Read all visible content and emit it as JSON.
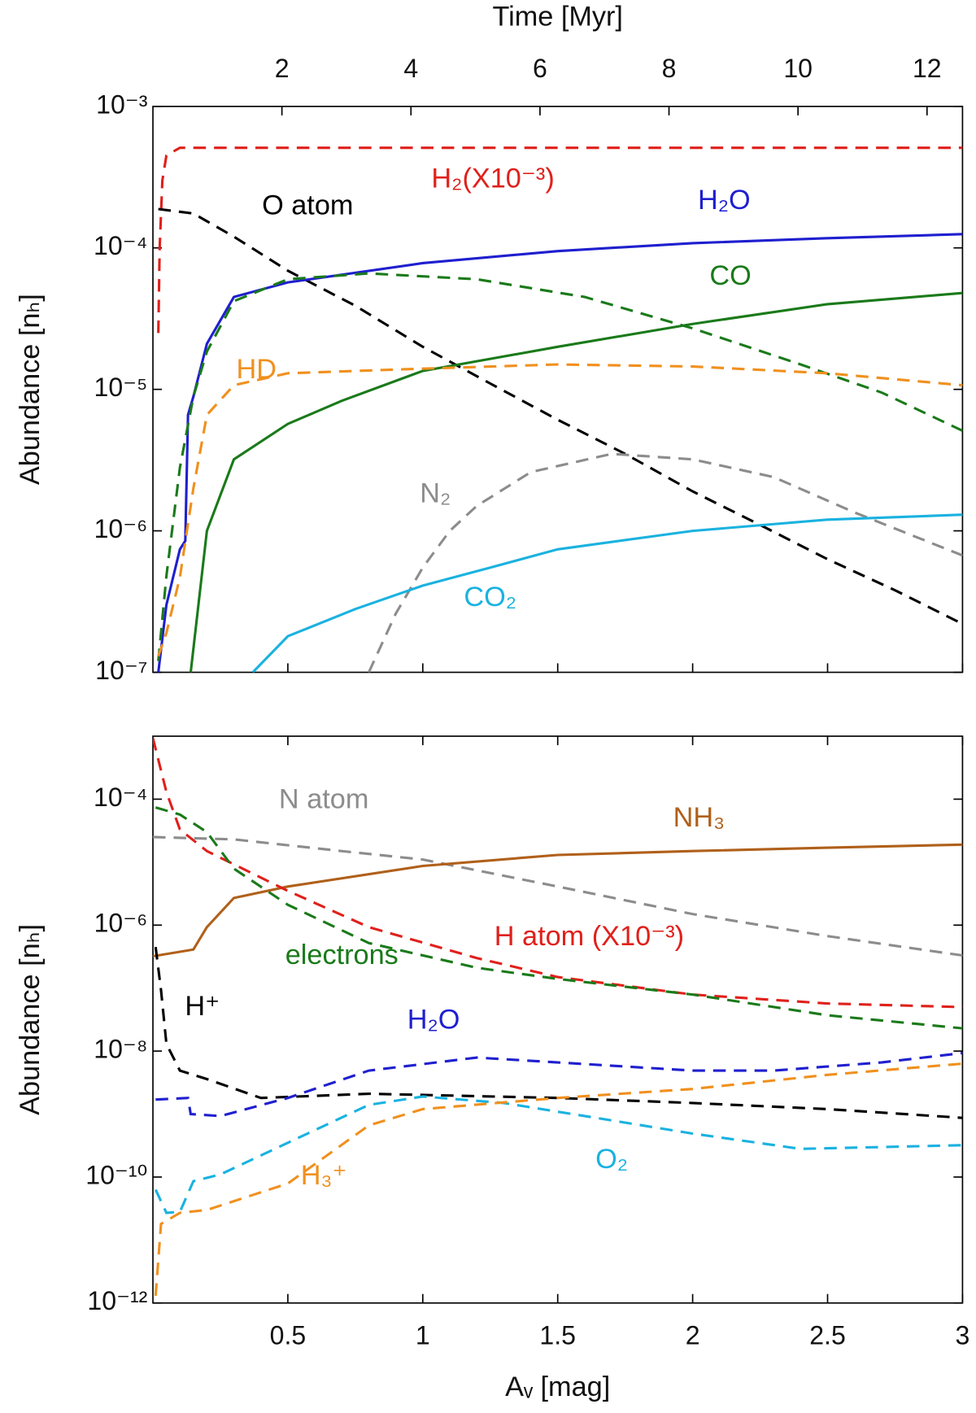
{
  "chart_data": [
    {
      "type": "line",
      "ylog": true,
      "x2_label": "Time [Myr]",
      "y_label": "Abundance [nₕ]",
      "xlim": [
        0,
        3
      ],
      "xticks": [
        0.5,
        1,
        1.5,
        2,
        2.5,
        3
      ],
      "x2lim": [
        0,
        12.55
      ],
      "x2ticks": [
        2,
        4,
        6,
        8,
        10,
        12
      ],
      "ylim": [
        1e-07,
        0.001
      ],
      "yticks": [
        {
          "value": 1e-07,
          "label": "10⁻⁷"
        },
        {
          "value": 1e-06,
          "label": "10⁻⁶"
        },
        {
          "value": 1e-05,
          "label": "10⁻⁵"
        },
        {
          "value": 0.0001,
          "label": "10⁻⁴"
        },
        {
          "value": 0.001,
          "label": "10⁻³"
        }
      ],
      "series": [
        {
          "name": "H₂(X10⁻³)",
          "color": "#e0201b",
          "linestyle": "dashed",
          "x": [
            0.02,
            0.025,
            0.035,
            0.05,
            0.1,
            3
          ],
          "values": [
            2.5e-05,
            0.0001,
            0.0003,
            0.00045,
            0.00051,
            0.00051
          ]
        },
        {
          "name": "O atom",
          "color": "#000000",
          "linestyle": "dashed",
          "x": [
            0.02,
            0.15,
            0.3,
            0.5,
            0.75,
            1.0,
            1.25,
            1.5,
            1.75,
            2.0,
            2.25,
            2.5,
            2.75,
            3.0
          ],
          "values": [
            0.000188,
            0.000175,
            0.00012,
            6.9e-05,
            3.9e-05,
            2e-05,
            1.1e-05,
            6.1e-06,
            3.5e-06,
            1.9e-06,
            1.1e-06,
            6.3e-07,
            3.8e-07,
            2.2e-07
          ]
        },
        {
          "name": "H₂O",
          "color": "#1f1fcf",
          "linestyle": "solid",
          "x": [
            0.02,
            0.05,
            0.1,
            0.12,
            0.13,
            0.15,
            0.2,
            0.3,
            0.5,
            1.0,
            1.5,
            2.0,
            2.5,
            3.0
          ],
          "values": [
            1e-07,
            3e-07,
            7.4e-07,
            8.5e-07,
            6.6e-06,
            8.9e-06,
            2.1e-05,
            4.5e-05,
            5.7e-05,
            7.8e-05,
            9.5e-05,
            0.000108,
            0.000117,
            0.000125
          ]
        },
        {
          "name": "CO",
          "color": "#1a7a1a",
          "linestyle": "solid",
          "x": [
            0.14,
            0.2,
            0.3,
            0.5,
            0.7,
            1.0,
            1.5,
            2.0,
            2.5,
            3.0
          ],
          "values": [
            1e-07,
            1e-06,
            3.2e-06,
            5.7e-06,
            8.3e-06,
            1.35e-05,
            2e-05,
            2.9e-05,
            4e-05,
            4.8e-05
          ]
        },
        {
          "name": null,
          "color": "#1a7a1a",
          "linestyle": "dashed",
          "x": [
            0.02,
            0.05,
            0.1,
            0.15,
            0.2,
            0.3,
            0.5,
            0.8,
            1.2,
            1.6,
            2.0,
            2.4,
            2.7,
            3.0
          ],
          "values": [
            1.2e-07,
            4.8e-07,
            2.8e-06,
            8.9e-06,
            1.85e-05,
            4.2e-05,
            6e-05,
            6.6e-05,
            6e-05,
            4.5e-05,
            2.7e-05,
            1.5e-05,
            9.5e-06,
            5.1e-06
          ]
        },
        {
          "name": "HD",
          "color": "#f0901e",
          "linestyle": "dashed",
          "x": [
            0.02,
            0.05,
            0.1,
            0.15,
            0.2,
            0.3,
            0.5,
            1.0,
            1.5,
            2.0,
            2.5,
            3.0
          ],
          "values": [
            1.3e-07,
            1.9e-07,
            4.7e-07,
            2e-06,
            6.6e-06,
            1.07e-05,
            1.3e-05,
            1.4e-05,
            1.5e-05,
            1.45e-05,
            1.3e-05,
            1.07e-05
          ]
        },
        {
          "name": "N₂",
          "color": "#8c8c8c",
          "linestyle": "dashed",
          "x": [
            0.8,
            0.9,
            1.0,
            1.1,
            1.2,
            1.4,
            1.7,
            2.0,
            2.3,
            2.6,
            3.0
          ],
          "values": [
            1e-07,
            2.6e-07,
            5.5e-07,
            1e-06,
            1.5e-06,
            2.6e-06,
            3.5e-06,
            3.2e-06,
            2.4e-06,
            1.35e-06,
            6.7e-07
          ]
        },
        {
          "name": "CO₂",
          "color": "#1ab2e0",
          "linestyle": "solid",
          "x": [
            0.37,
            0.5,
            0.75,
            1.0,
            1.25,
            1.5,
            2.0,
            2.5,
            3.0
          ],
          "values": [
            1e-07,
            1.8e-07,
            2.8e-07,
            4.1e-07,
            5.5e-07,
            7.4e-07,
            1e-06,
            1.2e-06,
            1.3e-06
          ]
        }
      ]
    },
    {
      "type": "line",
      "ylog": true,
      "x_label": "Aᵥ [mag]",
      "y_label": "Abundance [nₕ]",
      "xlim": [
        0,
        3
      ],
      "xticks": [
        0.5,
        1,
        1.5,
        2,
        2.5,
        3
      ],
      "ylim": [
        1e-12,
        0.001
      ],
      "yticks": [
        {
          "value": 1e-12,
          "label": "10⁻¹²"
        },
        {
          "value": 1e-10,
          "label": "10⁻¹⁰"
        },
        {
          "value": 1e-08,
          "label": "10⁻⁸"
        },
        {
          "value": 1e-06,
          "label": "10⁻⁶"
        },
        {
          "value": 0.0001,
          "label": "10⁻⁴"
        }
      ],
      "series": [
        {
          "name": "N atom",
          "color": "#8c8c8c",
          "linestyle": "dashed",
          "x": [
            0.0,
            0.3,
            0.7,
            1.0,
            1.5,
            2.0,
            2.5,
            3.0
          ],
          "values": [
            2.5e-05,
            2.3e-05,
            1.5e-05,
            1.1e-05,
            4.1e-06,
            1.5e-06,
            6.7e-07,
            3.3e-07
          ]
        },
        {
          "name": "NH₃",
          "color": "#b0601a",
          "linestyle": "solid",
          "x": [
            0.0,
            0.15,
            0.2,
            0.3,
            0.5,
            1.0,
            1.5,
            2.0,
            2.5,
            3.0
          ],
          "values": [
            3.2e-07,
            4.1e-07,
            9.3e-07,
            2.7e-06,
            4.1e-06,
            8.7e-06,
            1.3e-05,
            1.5e-05,
            1.7e-05,
            1.9e-05
          ]
        },
        {
          "name": "H atom (X10⁻³)",
          "color": "#e0201b",
          "linestyle": "dashed",
          "x": [
            0.0,
            0.05,
            0.1,
            0.2,
            0.5,
            0.8,
            1.2,
            1.5,
            2.0,
            2.5,
            3.0
          ],
          "values": [
            0.00093,
            0.00013,
            3.3e-05,
            1.5e-05,
            3.5e-06,
            9.3e-07,
            3e-07,
            1.5e-07,
            7.9e-08,
            5.7e-08,
            5e-08
          ]
        },
        {
          "name": "electrons",
          "color": "#1a7a1a",
          "linestyle": "dashed",
          "x": [
            0.01,
            0.1,
            0.2,
            0.3,
            0.5,
            0.8,
            1.2,
            1.5,
            2.0,
            2.5,
            3.0
          ],
          "values": [
            7.4e-05,
            5.7e-05,
            3e-05,
            7.9e-06,
            2.1e-06,
            5.2e-07,
            2.1e-07,
            1.4e-07,
            7.9e-08,
            3.7e-08,
            2.3e-08
          ]
        },
        {
          "name": "H⁺",
          "color": "#000000",
          "linestyle": "dashed",
          "x": [
            0.01,
            0.03,
            0.05,
            0.1,
            0.2,
            0.4,
            0.8,
            1.5,
            2.0,
            2.5,
            3.0
          ],
          "values": [
            4.5e-07,
            9.3e-08,
            1.3e-08,
            4.9e-09,
            3.6e-09,
            1.8e-09,
            2.1e-09,
            1.8e-09,
            1.5e-09,
            1.2e-09,
            8.7e-10
          ]
        },
        {
          "name": "H₂O",
          "color": "#1f1fcf",
          "linestyle": "dashed",
          "x": [
            0.01,
            0.13,
            0.14,
            0.25,
            0.5,
            0.8,
            1.2,
            1.5,
            2.0,
            2.3,
            2.7,
            3.0
          ],
          "values": [
            1.7e-09,
            1.8e-09,
            1e-09,
            9.3e-10,
            1.8e-09,
            4.9e-09,
            7.9e-09,
            6.6e-09,
            4.9e-09,
            4.9e-09,
            6.6e-09,
            9.3e-09
          ]
        },
        {
          "name": "O₂",
          "color": "#1ab2e0",
          "linestyle": "dashed",
          "x": [
            0.01,
            0.05,
            0.1,
            0.15,
            0.25,
            0.5,
            0.8,
            1.0,
            1.3,
            1.6,
            2.0,
            2.4,
            3.0
          ],
          "values": [
            6.3e-11,
            2.7e-11,
            2.8e-11,
            8.6e-11,
            1.1e-10,
            3.5e-10,
            1.4e-09,
            1.9e-09,
            1.5e-09,
            9.3e-10,
            4.9e-10,
            2.8e-10,
            3.2e-10
          ]
        },
        {
          "name": "H₃⁺",
          "color": "#f0901e",
          "linestyle": "dashed",
          "x": [
            0.01,
            0.03,
            0.1,
            0.2,
            0.5,
            0.8,
            1.0,
            1.5,
            2.0,
            2.5,
            3.0
          ],
          "values": [
            1.3e-12,
            1.8e-11,
            2.7e-11,
            3e-11,
            7.9e-11,
            6.6e-10,
            1.2e-09,
            1.8e-09,
            2.5e-09,
            4.2e-09,
            6.3e-09
          ]
        }
      ]
    }
  ]
}
